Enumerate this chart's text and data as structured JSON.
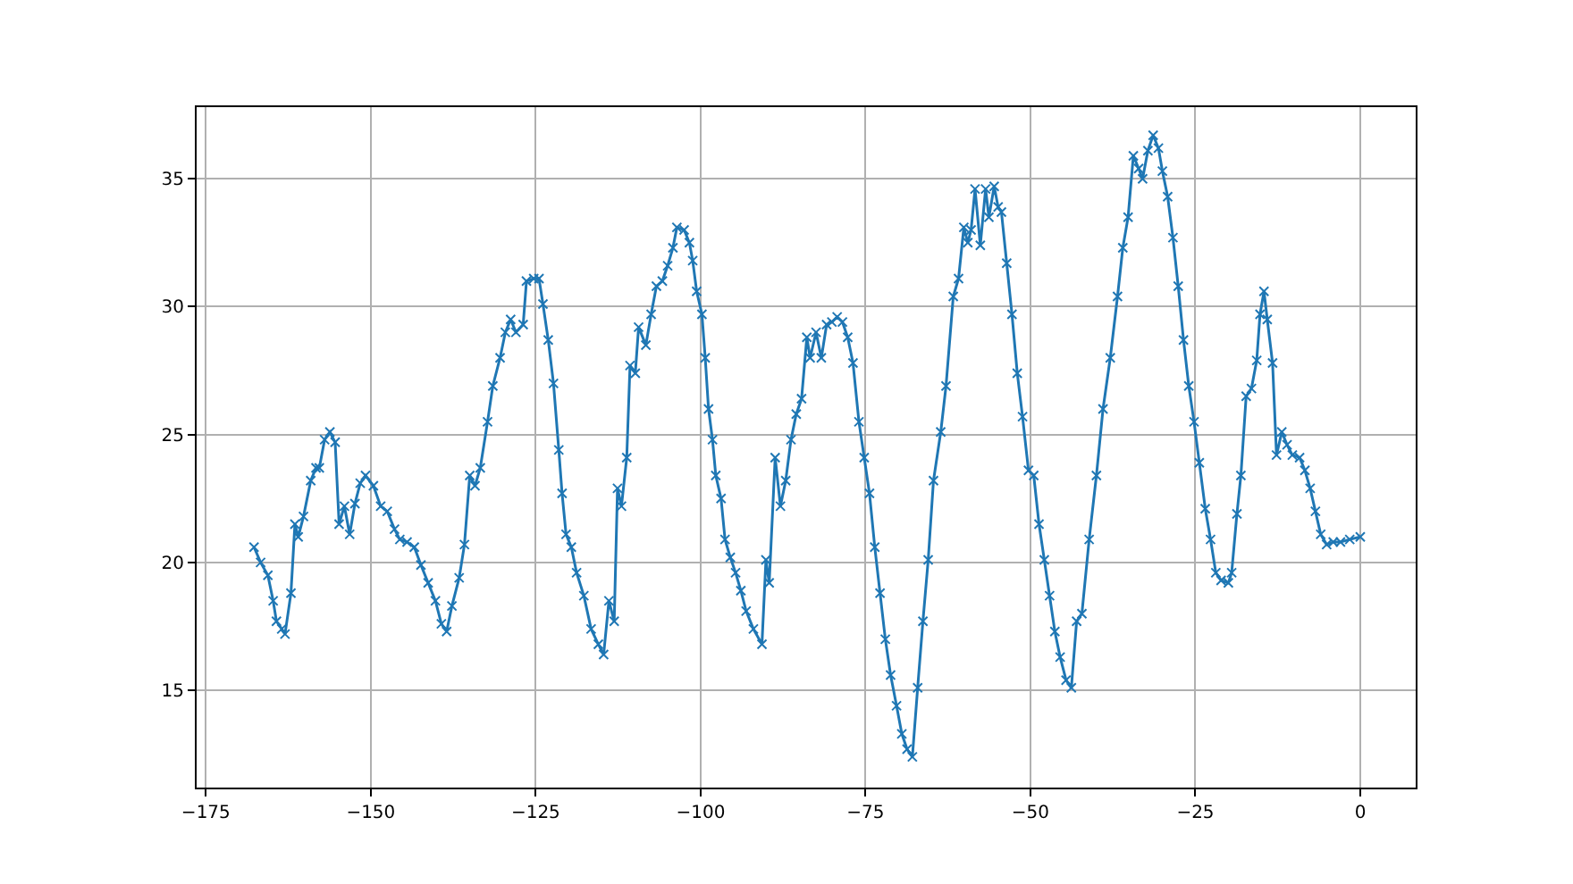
{
  "chart_data": {
    "type": "line",
    "marker": "cross",
    "line_style": "solid",
    "grid": true,
    "xlim": [
      -176.4,
      8.4
    ],
    "ylim": [
      11.2,
      37.8
    ],
    "xticks": [
      {
        "value": -175,
        "label": "−175"
      },
      {
        "value": -150,
        "label": "−150"
      },
      {
        "value": -125,
        "label": "−125"
      },
      {
        "value": -100,
        "label": "−100"
      },
      {
        "value": -75,
        "label": "−75"
      },
      {
        "value": -50,
        "label": "−50"
      },
      {
        "value": -25,
        "label": "−25"
      },
      0
    ],
    "yticks": [
      15,
      20,
      25,
      30,
      35
    ],
    "series": [
      {
        "color": "#1f77b4",
        "x": [
          -167.7,
          -166.7,
          -165.6,
          -164.8,
          -164.3,
          -163.5,
          -163.0,
          -162.1,
          -161.5,
          -161.0,
          -160.2,
          -159.1,
          -158.3,
          -157.8,
          -157.0,
          -156.2,
          -155.4,
          -154.8,
          -154.0,
          -153.2,
          -152.4,
          -151.6,
          -150.8,
          -149.6,
          -148.5,
          -147.5,
          -146.4,
          -145.6,
          -144.5,
          -143.4,
          -142.4,
          -141.3,
          -140.2,
          -139.3,
          -138.5,
          -137.7,
          -136.6,
          -135.8,
          -135.0,
          -134.2,
          -133.4,
          -132.3,
          -131.5,
          -130.4,
          -129.6,
          -128.8,
          -128.0,
          -126.9,
          -126.4,
          -125.3,
          -124.5,
          -123.9,
          -123.1,
          -122.3,
          -121.5,
          -121.0,
          -120.4,
          -119.6,
          -118.8,
          -117.7,
          -116.6,
          -115.5,
          -114.7,
          -113.9,
          -113.1,
          -112.6,
          -112.0,
          -111.2,
          -110.7,
          -109.9,
          -109.4,
          -108.3,
          -107.5,
          -106.7,
          -105.8,
          -105.0,
          -104.2,
          -103.6,
          -102.5,
          -101.7,
          -101.2,
          -100.6,
          -99.8,
          -99.3,
          -98.8,
          -98.2,
          -97.7,
          -96.9,
          -96.3,
          -95.5,
          -94.7,
          -93.9,
          -93.1,
          -92.0,
          -90.7,
          -90.1,
          -89.6,
          -88.7,
          -87.9,
          -87.1,
          -86.3,
          -85.5,
          -84.7,
          -83.9,
          -83.4,
          -82.5,
          -81.7,
          -80.9,
          -80.1,
          -79.3,
          -78.5,
          -77.7,
          -76.9,
          -76.0,
          -75.2,
          -74.4,
          -73.6,
          -72.8,
          -72.0,
          -71.2,
          -70.3,
          -69.5,
          -68.7,
          -67.9,
          -67.1,
          -66.3,
          -65.5,
          -64.7,
          -63.6,
          -62.8,
          -61.7,
          -60.9,
          -60.1,
          -59.5,
          -59.0,
          -58.4,
          -57.6,
          -56.8,
          -56.3,
          -55.5,
          -54.9,
          -54.4,
          -53.6,
          -52.8,
          -52.0,
          -51.2,
          -50.3,
          -49.5,
          -48.7,
          -47.9,
          -47.1,
          -46.3,
          -45.5,
          -44.6,
          -43.8,
          -43.0,
          -42.2,
          -41.1,
          -40.0,
          -39.0,
          -37.9,
          -36.8,
          -36.0,
          -35.2,
          -34.4,
          -33.6,
          -33.0,
          -32.2,
          -31.4,
          -30.6,
          -30.0,
          -29.2,
          -28.4,
          -27.6,
          -26.8,
          -26.0,
          -25.2,
          -24.4,
          -23.5,
          -22.7,
          -21.9,
          -21.1,
          -20.0,
          -19.5,
          -18.7,
          -18.1,
          -17.3,
          -16.5,
          -15.7,
          -15.2,
          -14.6,
          -14.1,
          -13.3,
          -12.7,
          -11.9,
          -11.1,
          -10.3,
          -9.2,
          -8.4,
          -7.6,
          -6.8,
          -6.0,
          -5.1,
          -4.1,
          -3.0,
          -1.6,
          0
        ],
        "values": [
          20.6,
          20.0,
          19.5,
          18.5,
          17.7,
          17.4,
          17.2,
          18.8,
          21.5,
          21.0,
          21.8,
          23.2,
          23.7,
          23.7,
          24.8,
          25.1,
          24.7,
          21.5,
          22.2,
          21.1,
          22.3,
          23.1,
          23.4,
          23.0,
          22.2,
          22.0,
          21.3,
          20.9,
          20.8,
          20.6,
          19.9,
          19.2,
          18.5,
          17.6,
          17.3,
          18.3,
          19.4,
          20.7,
          23.4,
          23.0,
          23.7,
          25.5,
          26.9,
          28.0,
          29.0,
          29.5,
          29.0,
          29.3,
          31.0,
          31.1,
          31.1,
          30.1,
          28.7,
          27.0,
          24.4,
          22.7,
          21.1,
          20.6,
          19.6,
          18.7,
          17.4,
          16.8,
          16.4,
          18.5,
          17.7,
          22.9,
          22.2,
          24.1,
          27.7,
          27.4,
          29.2,
          28.5,
          29.7,
          30.8,
          31.0,
          31.6,
          32.3,
          33.1,
          33.0,
          32.5,
          31.8,
          30.6,
          29.7,
          28.0,
          26.0,
          24.8,
          23.4,
          22.5,
          20.9,
          20.2,
          19.6,
          18.9,
          18.1,
          17.4,
          16.8,
          20.1,
          19.2,
          24.1,
          22.2,
          23.2,
          24.8,
          25.8,
          26.4,
          28.8,
          28.0,
          29.0,
          28.0,
          29.3,
          29.4,
          29.6,
          29.4,
          28.8,
          27.8,
          25.5,
          24.1,
          22.7,
          20.6,
          18.8,
          17.0,
          15.6,
          14.4,
          13.3,
          12.7,
          12.4,
          15.1,
          17.7,
          20.1,
          23.2,
          25.1,
          26.9,
          30.4,
          31.1,
          33.1,
          32.5,
          33.0,
          34.6,
          32.4,
          34.6,
          33.5,
          34.7,
          33.9,
          33.7,
          31.7,
          29.7,
          27.4,
          25.7,
          23.6,
          23.4,
          21.5,
          20.1,
          18.7,
          17.3,
          16.3,
          15.4,
          15.1,
          17.7,
          18.0,
          20.9,
          23.4,
          26.0,
          28.0,
          30.4,
          32.3,
          33.5,
          35.9,
          35.4,
          35.0,
          36.1,
          36.7,
          36.2,
          35.3,
          34.3,
          32.7,
          30.8,
          28.7,
          26.9,
          25.5,
          23.9,
          22.1,
          20.9,
          19.6,
          19.3,
          19.2,
          19.6,
          21.9,
          23.4,
          26.5,
          26.8,
          27.9,
          29.7,
          30.6,
          29.5,
          27.8,
          24.2,
          25.1,
          24.6,
          24.2,
          24.1,
          23.6,
          22.9,
          22.0,
          21.1,
          20.7,
          20.8,
          20.8,
          20.9,
          21.0
        ]
      }
    ]
  }
}
